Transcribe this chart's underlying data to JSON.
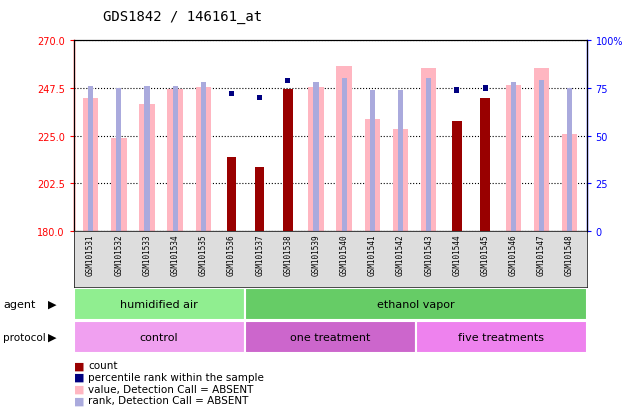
{
  "title": "GDS1842 / 146161_at",
  "samples": [
    "GSM101531",
    "GSM101532",
    "GSM101533",
    "GSM101534",
    "GSM101535",
    "GSM101536",
    "GSM101537",
    "GSM101538",
    "GSM101539",
    "GSM101540",
    "GSM101541",
    "GSM101542",
    "GSM101543",
    "GSM101544",
    "GSM101545",
    "GSM101546",
    "GSM101547",
    "GSM101548"
  ],
  "count_values": [
    null,
    null,
    null,
    null,
    null,
    215,
    210,
    247,
    null,
    null,
    null,
    null,
    null,
    232,
    243,
    null,
    null,
    null
  ],
  "rank_values": [
    null,
    null,
    null,
    null,
    null,
    72,
    70,
    79,
    null,
    null,
    null,
    null,
    null,
    74,
    75,
    null,
    null,
    null
  ],
  "value_absent": [
    243,
    224,
    240,
    247,
    248,
    null,
    null,
    null,
    248,
    258,
    233,
    228,
    257,
    null,
    null,
    249,
    257,
    226
  ],
  "rank_absent": [
    76,
    75,
    76,
    76,
    78,
    null,
    null,
    null,
    78,
    80,
    74,
    74,
    80,
    null,
    null,
    78,
    79,
    75
  ],
  "ylim_left": [
    180,
    270
  ],
  "ylim_right": [
    0,
    100
  ],
  "yticks_left": [
    180,
    202.5,
    225,
    247.5,
    270
  ],
  "yticks_right": [
    0,
    25,
    50,
    75,
    100
  ],
  "agent_groups": [
    {
      "label": "humidified air",
      "start": 0,
      "end": 6,
      "color": "#90EE90"
    },
    {
      "label": "ethanol vapor",
      "start": 6,
      "end": 18,
      "color": "#66CC66"
    }
  ],
  "protocol_groups": [
    {
      "label": "control",
      "start": 0,
      "end": 6,
      "color": "#F0A0F0"
    },
    {
      "label": "one treatment",
      "start": 6,
      "end": 12,
      "color": "#CC66CC"
    },
    {
      "label": "five treatments",
      "start": 12,
      "end": 18,
      "color": "#EE82EE"
    }
  ],
  "color_count": "#990000",
  "color_rank_marker": "#000080",
  "color_value_absent": "#FFB6C1",
  "color_rank_absent": "#AAAADD",
  "legend_items": [
    {
      "label": "count",
      "color": "#990000",
      "marker": "s"
    },
    {
      "label": "percentile rank within the sample",
      "color": "#000080",
      "marker": "s"
    },
    {
      "label": "value, Detection Call = ABSENT",
      "color": "#FFB6C1",
      "marker": "s"
    },
    {
      "label": "rank, Detection Call = ABSENT",
      "color": "#AAAADD",
      "marker": "s"
    }
  ]
}
